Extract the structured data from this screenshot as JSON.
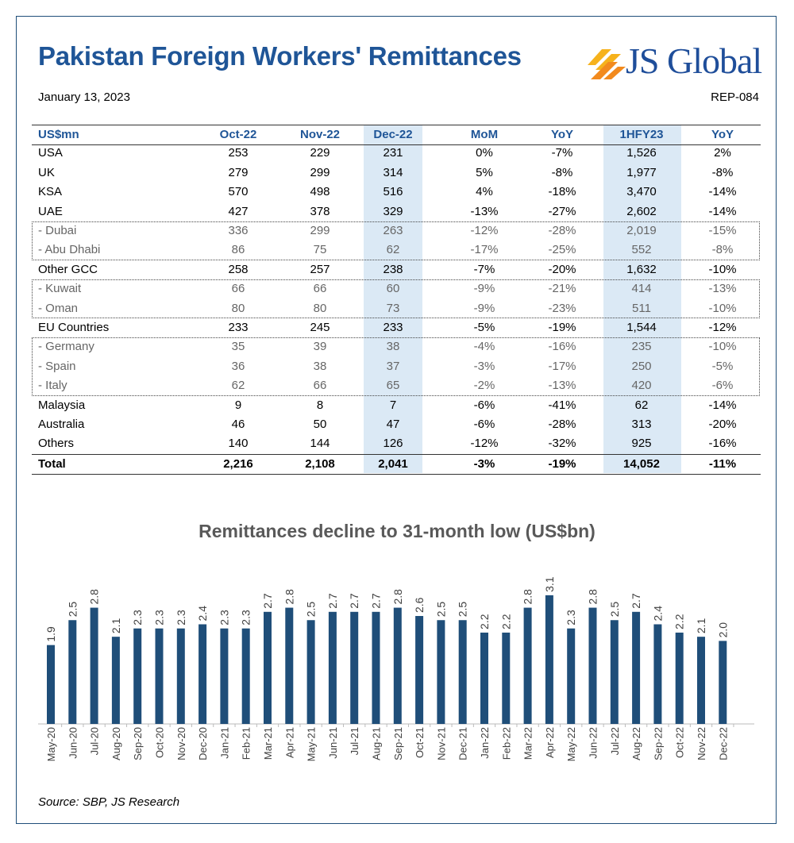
{
  "header": {
    "title": "Pakistan Foreign Workers' Remittances",
    "logo_text": "JS Global",
    "date": "January 13, 2023",
    "report_id": "REP-084"
  },
  "table": {
    "columns": [
      "US$mn",
      "Oct-22",
      "Nov-22",
      "Dec-22",
      "MoM",
      "YoY",
      "1HFY23",
      "YoY"
    ],
    "rows": [
      {
        "type": "main",
        "cells": [
          "USA",
          "253",
          "229",
          "231",
          "0%",
          "-7%",
          "1,526",
          "2%"
        ]
      },
      {
        "type": "main",
        "cells": [
          "UK",
          "279",
          "299",
          "314",
          "5%",
          "-8%",
          "1,977",
          "-8%"
        ]
      },
      {
        "type": "main",
        "cells": [
          "KSA",
          "570",
          "498",
          "516",
          "4%",
          "-18%",
          "3,470",
          "-14%"
        ]
      },
      {
        "type": "main",
        "cells": [
          "UAE",
          "427",
          "378",
          "329",
          "-13%",
          "-27%",
          "2,602",
          "-14%"
        ]
      },
      {
        "type": "sub",
        "cells": [
          " - Dubai",
          "336",
          "299",
          "263",
          "-12%",
          "-28%",
          "2,019",
          "-15%"
        ]
      },
      {
        "type": "sub",
        "cells": [
          " - Abu Dhabi",
          "86",
          "75",
          "62",
          "-17%",
          "-25%",
          "552",
          "-8%"
        ]
      },
      {
        "type": "main",
        "cells": [
          "Other GCC",
          "258",
          "257",
          "238",
          "-7%",
          "-20%",
          "1,632",
          "-10%"
        ]
      },
      {
        "type": "sub",
        "cells": [
          " - Kuwait",
          "66",
          "66",
          "60",
          "-9%",
          "-21%",
          "414",
          "-13%"
        ]
      },
      {
        "type": "sub",
        "cells": [
          " - Oman",
          "80",
          "80",
          "73",
          "-9%",
          "-23%",
          "511",
          "-10%"
        ]
      },
      {
        "type": "main",
        "cells": [
          "EU Countries",
          "233",
          "245",
          "233",
          "-5%",
          "-19%",
          "1,544",
          "-12%"
        ]
      },
      {
        "type": "sub",
        "cells": [
          " - Germany",
          "35",
          "39",
          "38",
          "-4%",
          "-16%",
          "235",
          "-10%"
        ]
      },
      {
        "type": "sub",
        "cells": [
          " - Spain",
          "36",
          "38",
          "37",
          "-3%",
          "-17%",
          "250",
          "-5%"
        ]
      },
      {
        "type": "sub",
        "cells": [
          " - Italy",
          "62",
          "66",
          "65",
          "-2%",
          "-13%",
          "420",
          "-6%"
        ]
      },
      {
        "type": "main",
        "cells": [
          "Malaysia",
          "9",
          "8",
          "7",
          "-6%",
          "-41%",
          "62",
          "-14%"
        ]
      },
      {
        "type": "main",
        "cells": [
          "Australia",
          "46",
          "50",
          "47",
          "-6%",
          "-28%",
          "313",
          "-20%"
        ]
      },
      {
        "type": "main",
        "cells": [
          "Others",
          "140",
          "144",
          "126",
          "-12%",
          "-32%",
          "925",
          "-16%"
        ]
      },
      {
        "type": "total",
        "cells": [
          "Total",
          "2,216",
          "2,108",
          "2,041",
          "-3%",
          "-19%",
          "14,052",
          "-11%"
        ]
      }
    ]
  },
  "chart_data": {
    "type": "bar",
    "title": "Remittances decline to 31-month low (US$bn)",
    "xlabel": "",
    "ylabel": "",
    "categories": [
      "May-20",
      "Jun-20",
      "Jul-20",
      "Aug-20",
      "Sep-20",
      "Oct-20",
      "Nov-20",
      "Dec-20",
      "Jan-21",
      "Feb-21",
      "Mar-21",
      "Apr-21",
      "May-21",
      "Jun-21",
      "Jul-21",
      "Aug-21",
      "Sep-21",
      "Oct-21",
      "Nov-21",
      "Dec-21",
      "Jan-22",
      "Feb-22",
      "Mar-22",
      "Apr-22",
      "May-22",
      "Jun-22",
      "Jul-22",
      "Aug-22",
      "Sep-22",
      "Oct-22",
      "Nov-22",
      "Dec-22"
    ],
    "values": [
      1.9,
      2.5,
      2.8,
      2.1,
      2.3,
      2.3,
      2.3,
      2.4,
      2.3,
      2.3,
      2.7,
      2.8,
      2.5,
      2.7,
      2.7,
      2.7,
      2.8,
      2.6,
      2.5,
      2.5,
      2.2,
      2.2,
      2.8,
      3.1,
      2.3,
      2.8,
      2.5,
      2.7,
      2.4,
      2.2,
      2.1,
      2.0
    ],
    "ylim": [
      0,
      3.2
    ],
    "grid": false,
    "color": "#1f4e79"
  },
  "source": "Source: SBP, JS Research"
}
